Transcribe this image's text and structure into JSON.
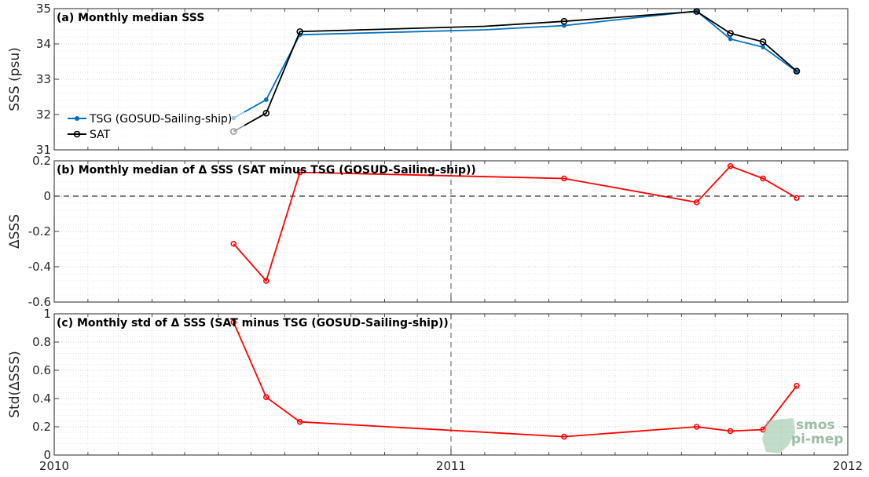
{
  "chart_data": [
    {
      "type": "line",
      "title": "(a) Monthly median SSS",
      "ylabel": "SSS (psu)",
      "ylim": [
        31,
        35
      ],
      "yticks": [
        "31",
        "32",
        "33",
        "34",
        "35"
      ],
      "xlim": [
        "2010-01-01",
        "2012-01-01"
      ],
      "x": [
        "2010-06-15",
        "2010-07-15",
        "2010-08-15",
        "2011-04-15",
        "2011-08-15",
        "2011-09-15",
        "2011-10-15",
        "2011-11-15"
      ],
      "series": [
        {
          "name": "TSG (GOSUD-Sailing-ship)",
          "color": "#0072bd",
          "values": [
            31.9,
            32.42,
            34.26,
            34.52,
            34.93,
            34.14,
            33.91,
            33.22
          ]
        },
        {
          "name": "SAT",
          "color": "#000000",
          "values": [
            31.52,
            32.04,
            34.35,
            34.64,
            34.92,
            34.3,
            34.06,
            33.23
          ]
        }
      ],
      "extra_points": [
        {
          "x": "2011-02-01",
          "values": [
            34.4,
            34.5
          ]
        }
      ],
      "legend": "lower-left",
      "grid": true
    },
    {
      "type": "line",
      "title": "(b) Monthly median of Δ SSS (SAT minus TSG (GOSUD-Sailing-ship))",
      "ylabel": "ΔSSS",
      "ylim": [
        -0.6,
        0.2
      ],
      "yticks": [
        "-0.6",
        "-0.4",
        "-0.2",
        "0",
        "0.2"
      ],
      "x": [
        "2010-06-15",
        "2010-07-15",
        "2010-08-15",
        "2011-04-15",
        "2011-08-15",
        "2011-09-15",
        "2011-10-15",
        "2011-11-15"
      ],
      "series": [
        {
          "color": "#ff0000",
          "values": [
            -0.27,
            -0.48,
            0.135,
            0.1,
            -0.035,
            0.17,
            0.1,
            -0.01
          ]
        }
      ],
      "zero_line": true,
      "grid": true
    },
    {
      "type": "line",
      "title": "(c) Monthly std of Δ SSS (SAT minus TSG (GOSUD-Sailing-ship))",
      "ylabel": "Std(ΔSSS)",
      "ylim": [
        0,
        1
      ],
      "yticks": [
        "0",
        "0.2",
        "0.4",
        "0.6",
        "0.8",
        "1"
      ],
      "x": [
        "2010-06-15",
        "2010-07-15",
        "2010-08-15",
        "2011-04-15",
        "2011-08-15",
        "2011-09-15",
        "2011-10-15",
        "2011-11-15"
      ],
      "series": [
        {
          "color": "#ff0000",
          "values": [
            0.94,
            0.41,
            0.235,
            0.13,
            0.2,
            0.17,
            0.18,
            0.49
          ]
        }
      ],
      "xticks": [
        "2010",
        "2011",
        "2012"
      ],
      "grid": true
    }
  ],
  "watermark": {
    "line1": "smos",
    "line2": "pi-mep"
  }
}
